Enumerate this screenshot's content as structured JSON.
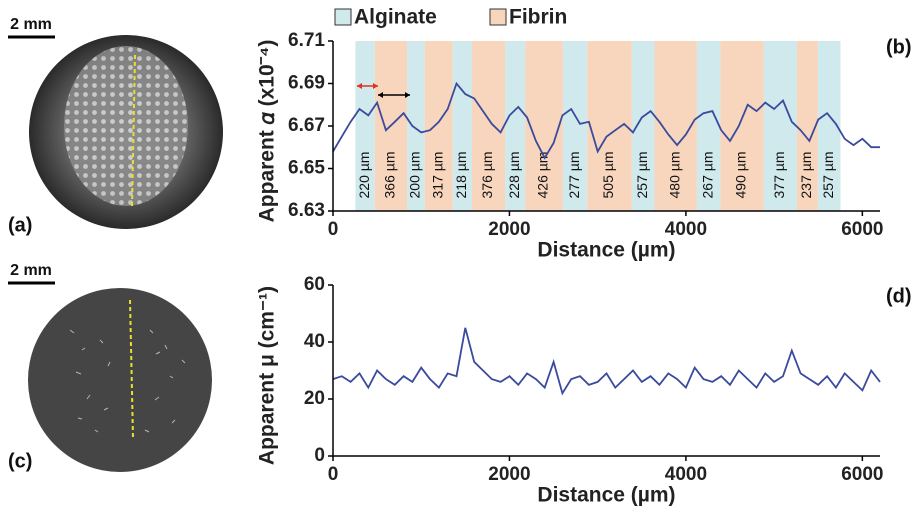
{
  "panels": {
    "a": {
      "label": "(a)",
      "scale": "2 mm"
    },
    "b": {
      "label": "(b)"
    },
    "c": {
      "label": "(c)",
      "scale": "2 mm"
    },
    "d": {
      "label": "(d)"
    }
  },
  "chart_data": [
    {
      "type": "line",
      "ylabel": "Apparent 𝛼 (x10⁻⁴)",
      "xlabel": "Distance (µm)",
      "xlim": [
        0,
        6200
      ],
      "xticks": [
        0,
        2000,
        4000,
        6000
      ],
      "ylim": [
        6.63,
        6.71
      ],
      "yticks": [
        6.63,
        6.65,
        6.67,
        6.69,
        6.71
      ],
      "regions": [
        {
          "name": "Alginate",
          "color": "#cfe9ec",
          "spans": [
            [
              254,
              474
            ],
            [
              840,
              1040
            ],
            [
              1357,
              1575
            ],
            [
              1951,
              2179
            ],
            [
              2605,
              2882
            ],
            [
              3387,
              3644
            ],
            [
              4124,
              4391
            ],
            [
              4881,
              5258
            ],
            [
              5495,
              5752
            ]
          ],
          "labels": [
            "220 µm",
            "200 µm",
            "218 µm",
            "228 µm",
            "277 µm",
            "257 µm",
            "267 µm",
            "377 µm",
            "257 µm"
          ]
        },
        {
          "name": "Fibrin",
          "color": "#f8d5bd",
          "spans": [
            [
              474,
              840
            ],
            [
              1040,
              1357
            ],
            [
              1575,
              1951
            ],
            [
              2179,
              2605
            ],
            [
              2882,
              3387
            ],
            [
              3644,
              4124
            ],
            [
              4391,
              4881
            ],
            [
              5258,
              5495
            ]
          ],
          "labels": [
            "366 µm",
            "317 µm",
            "376 µm",
            "426 µm",
            "505 µm",
            "480 µm",
            "490 µm",
            "237 µm"
          ]
        }
      ],
      "series": [
        {
          "color": "#3a4a9c",
          "x": [
            0,
            100,
            200,
            300,
            400,
            500,
            600,
            700,
            800,
            900,
            1000,
            1100,
            1200,
            1300,
            1400,
            1500,
            1600,
            1700,
            1800,
            1900,
            2000,
            2100,
            2200,
            2300,
            2400,
            2500,
            2600,
            2700,
            2800,
            2900,
            3000,
            3100,
            3200,
            3300,
            3400,
            3500,
            3600,
            3700,
            3800,
            3900,
            4000,
            4100,
            4200,
            4300,
            4400,
            4500,
            4600,
            4700,
            4800,
            4900,
            5000,
            5100,
            5200,
            5300,
            5400,
            5500,
            5600,
            5700,
            5800,
            5900,
            6000,
            6100,
            6200
          ],
          "values": [
            6.658,
            6.665,
            6.672,
            6.678,
            6.675,
            6.681,
            6.668,
            6.672,
            6.676,
            6.67,
            6.667,
            6.668,
            6.672,
            6.678,
            6.69,
            6.685,
            6.683,
            6.677,
            6.671,
            6.667,
            6.675,
            6.679,
            6.674,
            6.663,
            6.655,
            6.662,
            6.675,
            6.678,
            6.671,
            6.672,
            6.658,
            6.665,
            6.668,
            6.671,
            6.667,
            6.674,
            6.677,
            6.672,
            6.666,
            6.661,
            6.666,
            6.673,
            6.676,
            6.677,
            6.668,
            6.663,
            6.67,
            6.68,
            6.677,
            6.681,
            6.678,
            6.682,
            6.672,
            6.668,
            6.663,
            6.673,
            6.676,
            6.671,
            6.664,
            6.661,
            6.664,
            6.66,
            6.66
          ]
        }
      ]
    },
    {
      "type": "line",
      "ylabel": "Apparent μ (cm⁻¹)",
      "xlabel": "Distance (µm)",
      "xlim": [
        0,
        6200
      ],
      "xticks": [
        0,
        2000,
        4000,
        6000
      ],
      "ylim": [
        0,
        60
      ],
      "yticks": [
        0,
        20,
        40,
        60
      ],
      "series": [
        {
          "color": "#3a4a9c",
          "x": [
            0,
            100,
            200,
            300,
            400,
            500,
            600,
            700,
            800,
            900,
            1000,
            1100,
            1200,
            1300,
            1400,
            1500,
            1600,
            1700,
            1800,
            1900,
            2000,
            2100,
            2200,
            2300,
            2400,
            2500,
            2600,
            2700,
            2800,
            2900,
            3000,
            3100,
            3200,
            3300,
            3400,
            3500,
            3600,
            3700,
            3800,
            3900,
            4000,
            4100,
            4200,
            4300,
            4400,
            4500,
            4600,
            4700,
            4800,
            4900,
            5000,
            5100,
            5200,
            5300,
            5400,
            5500,
            5600,
            5700,
            5800,
            5900,
            6000,
            6100,
            6200
          ],
          "values": [
            27,
            28,
            26,
            29,
            24,
            30,
            27,
            25,
            28,
            26,
            31,
            27,
            24,
            29,
            28,
            45,
            33,
            30,
            27,
            26,
            28,
            25,
            29,
            27,
            24,
            33,
            22,
            27,
            28,
            25,
            26,
            29,
            24,
            27,
            30,
            26,
            28,
            25,
            29,
            27,
            24,
            31,
            27,
            26,
            28,
            25,
            30,
            27,
            24,
            29,
            26,
            28,
            37,
            29,
            27,
            25,
            28,
            24,
            29,
            26,
            23,
            30,
            26
          ]
        }
      ]
    }
  ]
}
